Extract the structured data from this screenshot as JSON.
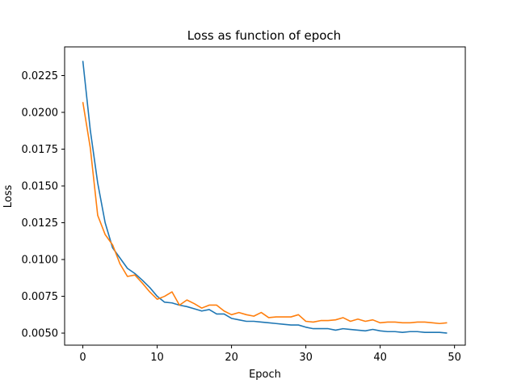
{
  "chart_data": {
    "type": "line",
    "title": "Loss as function of epoch",
    "xlabel": "Epoch",
    "ylabel": "Loss",
    "xlim": [
      -2.45,
      51.45
    ],
    "ylim": [
      0.00418,
      0.02445
    ],
    "xticks": [
      0,
      10,
      20,
      30,
      40,
      50
    ],
    "xtick_labels": [
      "0",
      "10",
      "20",
      "30",
      "40",
      "50"
    ],
    "yticks": [
      0.005,
      0.0075,
      0.01,
      0.0125,
      0.015,
      0.0175,
      0.02,
      0.0225
    ],
    "ytick_labels": [
      "0.0050",
      "0.0075",
      "0.0100",
      "0.0125",
      "0.0150",
      "0.0175",
      "0.0200",
      "0.0225"
    ],
    "grid": false,
    "legend": false,
    "x": [
      0,
      1,
      2,
      3,
      4,
      5,
      6,
      7,
      8,
      9,
      10,
      11,
      12,
      13,
      14,
      15,
      16,
      17,
      18,
      19,
      20,
      21,
      22,
      23,
      24,
      25,
      26,
      27,
      28,
      29,
      30,
      31,
      32,
      33,
      34,
      35,
      36,
      37,
      38,
      39,
      40,
      41,
      42,
      43,
      44,
      45,
      46,
      47,
      48,
      49
    ],
    "series": [
      {
        "color": "#1f77b4",
        "values": [
          0.0235,
          0.0188,
          0.0152,
          0.0125,
          0.0108,
          0.0101,
          0.0094,
          0.00905,
          0.0086,
          0.0081,
          0.0075,
          0.0071,
          0.00705,
          0.0069,
          0.0068,
          0.00665,
          0.0065,
          0.0066,
          0.0063,
          0.0063,
          0.006,
          0.0059,
          0.0058,
          0.0058,
          0.00575,
          0.0057,
          0.00565,
          0.0056,
          0.00555,
          0.00555,
          0.0054,
          0.0053,
          0.0053,
          0.0053,
          0.0052,
          0.0053,
          0.00525,
          0.0052,
          0.00515,
          0.00525,
          0.00515,
          0.0051,
          0.0051,
          0.00505,
          0.0051,
          0.0051,
          0.00505,
          0.00505,
          0.00505,
          0.005
        ]
      },
      {
        "color": "#ff7f0e",
        "values": [
          0.0207,
          0.0176,
          0.013,
          0.0117,
          0.011,
          0.0097,
          0.00885,
          0.00895,
          0.0084,
          0.0078,
          0.0073,
          0.0075,
          0.0078,
          0.0069,
          0.00725,
          0.007,
          0.0067,
          0.0069,
          0.0069,
          0.0065,
          0.00625,
          0.0064,
          0.00625,
          0.00615,
          0.0064,
          0.00605,
          0.0061,
          0.0061,
          0.0061,
          0.00625,
          0.0058,
          0.00575,
          0.00585,
          0.00585,
          0.0059,
          0.00605,
          0.0058,
          0.00595,
          0.0058,
          0.0059,
          0.0057,
          0.00575,
          0.00575,
          0.0057,
          0.0057,
          0.00575,
          0.00575,
          0.0057,
          0.00565,
          0.0057
        ]
      }
    ]
  }
}
